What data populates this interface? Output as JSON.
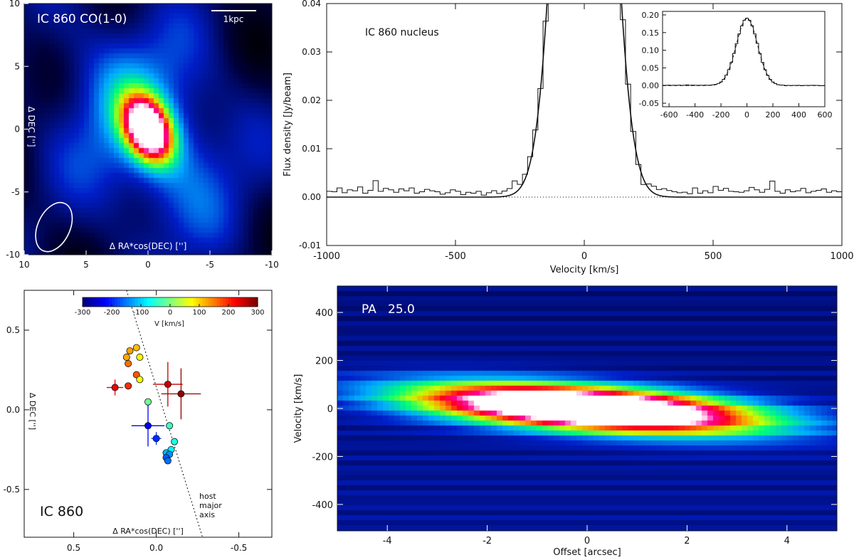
{
  "colors": {
    "text": "#111111",
    "white": "#ffffff"
  },
  "chart_data": [
    {
      "id": "co_map",
      "type": "heatmap",
      "title": "IC 860 CO(1-0)",
      "scalebar_label": "1kpc",
      "xlabel": "Δ RA*cos(DEC) ['']",
      "ylabel": "Δ DEC ['']",
      "xlim": [
        10,
        -10
      ],
      "ylim": [
        -10,
        10
      ],
      "xticks": [
        10,
        5,
        0,
        -5,
        -10
      ],
      "yticks": [
        10,
        5,
        0,
        -5,
        -10
      ],
      "peak": {
        "x": 0.0,
        "y": 0.0
      },
      "emission_sigma_arcsec": [
        1.2,
        1.8
      ],
      "emission_pa_deg": 25,
      "beam": {
        "x": 7.6,
        "y": -7.8,
        "major_arcsec": 4.2,
        "minor_arcsec": 2.6,
        "pa_deg": 25
      }
    },
    {
      "id": "spectrum",
      "type": "line",
      "label": "IC 860 nucleus",
      "xlabel": "Velocity [km/s]",
      "ylabel": "Flux density [Jy/beam]",
      "xlim": [
        -1000,
        1000
      ],
      "ylim": [
        -0.01,
        0.04
      ],
      "xticks": [
        -1000,
        -500,
        0,
        500,
        1000
      ],
      "yticks": [
        -0.01,
        0.0,
        0.01,
        0.02,
        0.03,
        0.04
      ],
      "ytick_labels": [
        "-0.01",
        "0.00",
        "0.01",
        "0.02",
        "0.03",
        "0.04"
      ],
      "gaussian_fit": {
        "amplitude": 0.19,
        "center": 0,
        "sigma": 82,
        "baseline": 0.0
      },
      "channel_width_kms": 20,
      "noise_residuals": [
        0.0012,
        0.0011,
        0.0019,
        0.0009,
        0.0015,
        0.0013,
        0.0021,
        0.0008,
        0.0014,
        0.0034,
        0.0012,
        0.0018,
        0.0015,
        0.001,
        0.0017,
        0.0013,
        0.0019,
        0.0008,
        0.0011,
        0.0016,
        0.0013,
        0.0011,
        0.0006,
        0.0009,
        0.0015,
        0.0012,
        0.0005,
        0.001,
        0.0008,
        0.0012,
        0.0004,
        0.0009,
        0.0013,
        0.0007,
        0.0011,
        0.0014,
        0.0025,
        0.0008,
        0.001,
        0.0012,
        0.0009,
        0.0003,
        0.0007,
        0.001,
        -0.0008,
        0.0004,
        0.0009,
        -0.0012,
        0.0006,
        -0.0002,
        0.0008,
        0.0005,
        0.0011,
        -0.0009,
        0.0003,
        0.0007,
        0.0004,
        0.001,
        0.0012,
        0.0006,
        -0.0004,
        -0.0011,
        0.0009,
        0.0014,
        0.0012,
        0.0016,
        0.0013,
        0.0011,
        0.0009,
        0.001,
        0.0007,
        0.0019,
        0.0008,
        0.0013,
        0.0009,
        0.0022,
        0.0014,
        0.0018,
        0.0012,
        0.0011,
        0.001,
        0.0013,
        0.002,
        0.0015,
        0.001,
        0.0016,
        0.0033,
        0.0012,
        0.0008,
        0.0015,
        0.0011,
        0.0013,
        0.0018,
        0.0009,
        0.0012,
        0.0014,
        0.0017,
        0.001,
        0.0013,
        0.0011,
        0.0015
      ],
      "inset": {
        "xlim": [
          -650,
          600
        ],
        "ylim": [
          -0.06,
          0.21
        ],
        "xticks": [
          -600,
          -400,
          -200,
          0,
          200,
          400,
          600
        ],
        "yticks": [
          -0.05,
          0.0,
          0.05,
          0.1,
          0.15,
          0.2
        ],
        "ytick_labels": [
          "-0.05",
          "0.00",
          "0.05",
          "0.10",
          "0.15",
          "0.20"
        ]
      }
    },
    {
      "id": "velocity_map",
      "type": "scatter",
      "label": "IC 860",
      "xlabel": "Δ RA*cos(DEC) ['']",
      "ylabel": "Δ DEC ['']",
      "xlim": [
        0.8,
        -0.7
      ],
      "ylim": [
        -0.8,
        0.75
      ],
      "xticks": [
        0.5,
        0.0,
        -0.5
      ],
      "xtick_labels": [
        "0.5",
        "0.0",
        "-0.5"
      ],
      "yticks": [
        0.5,
        0.0,
        -0.5
      ],
      "ytick_labels": [
        "0.5",
        "0.0",
        "-0.5"
      ],
      "colorbar": {
        "label": "V [km/s]",
        "min": -300,
        "max": 300,
        "ticks": [
          -300,
          -200,
          -100,
          0,
          100,
          200,
          300
        ]
      },
      "axis_line": {
        "label": [
          "host",
          "major",
          "axis"
        ],
        "x0": 0.18,
        "y0": 0.75,
        "x1": -0.28,
        "y1": -0.8
      },
      "points": [
        {
          "x": 0.16,
          "y": 0.37,
          "v": 130,
          "ex": 0,
          "ey": 0
        },
        {
          "x": 0.12,
          "y": 0.39,
          "v": 115,
          "ex": 0,
          "ey": 0
        },
        {
          "x": 0.18,
          "y": 0.33,
          "v": 125,
          "ex": 0,
          "ey": 0
        },
        {
          "x": 0.1,
          "y": 0.33,
          "v": 80,
          "ex": 0,
          "ey": 0
        },
        {
          "x": 0.17,
          "y": 0.29,
          "v": 160,
          "ex": 0,
          "ey": 0
        },
        {
          "x": 0.12,
          "y": 0.22,
          "v": 175,
          "ex": 0,
          "ey": 0
        },
        {
          "x": 0.1,
          "y": 0.19,
          "v": 70,
          "ex": 0,
          "ey": 0
        },
        {
          "x": 0.25,
          "y": 0.14,
          "v": 235,
          "ex": 0.05,
          "ey": 0.05
        },
        {
          "x": 0.17,
          "y": 0.15,
          "v": 200,
          "ex": 0,
          "ey": 0
        },
        {
          "x": -0.07,
          "y": 0.16,
          "v": 260,
          "ex": 0.09,
          "ey": 0.14
        },
        {
          "x": -0.15,
          "y": 0.1,
          "v": 290,
          "ex": 0.12,
          "ey": 0.16
        },
        {
          "x": 0.05,
          "y": 0.05,
          "v": -10,
          "ex": 0,
          "ey": 0
        },
        {
          "x": 0.05,
          "y": -0.1,
          "v": -230,
          "ex": 0.1,
          "ey": 0.13
        },
        {
          "x": -0.08,
          "y": -0.1,
          "v": -40,
          "ex": 0,
          "ey": 0
        },
        {
          "x": 0.0,
          "y": -0.18,
          "v": -200,
          "ex": 0.03,
          "ey": 0.04
        },
        {
          "x": -0.11,
          "y": -0.2,
          "v": -60,
          "ex": 0,
          "ey": 0
        },
        {
          "x": -0.09,
          "y": -0.25,
          "v": -80,
          "ex": 0,
          "ey": 0
        },
        {
          "x": -0.06,
          "y": -0.27,
          "v": -120,
          "ex": 0,
          "ey": 0
        },
        {
          "x": -0.08,
          "y": -0.28,
          "v": -140,
          "ex": 0,
          "ey": 0
        },
        {
          "x": -0.06,
          "y": -0.3,
          "v": -170,
          "ex": 0,
          "ey": 0
        },
        {
          "x": -0.07,
          "y": -0.32,
          "v": -160,
          "ex": 0,
          "ey": 0
        }
      ]
    },
    {
      "id": "pv_diagram",
      "type": "heatmap",
      "label": "PA   25.0",
      "xlabel": "Offset [arcsec]",
      "ylabel": "Velocity [km/s]",
      "xlim": [
        -5.0,
        5.0
      ],
      "ylim": [
        -510,
        510
      ],
      "xticks": [
        -4,
        -2,
        0,
        2,
        4
      ],
      "yticks": [
        -400,
        -200,
        0,
        200,
        400
      ],
      "emission": {
        "width_arcsec": 2.1,
        "height_kms": 58,
        "shear_kms_per_arcsec": 14
      }
    }
  ]
}
